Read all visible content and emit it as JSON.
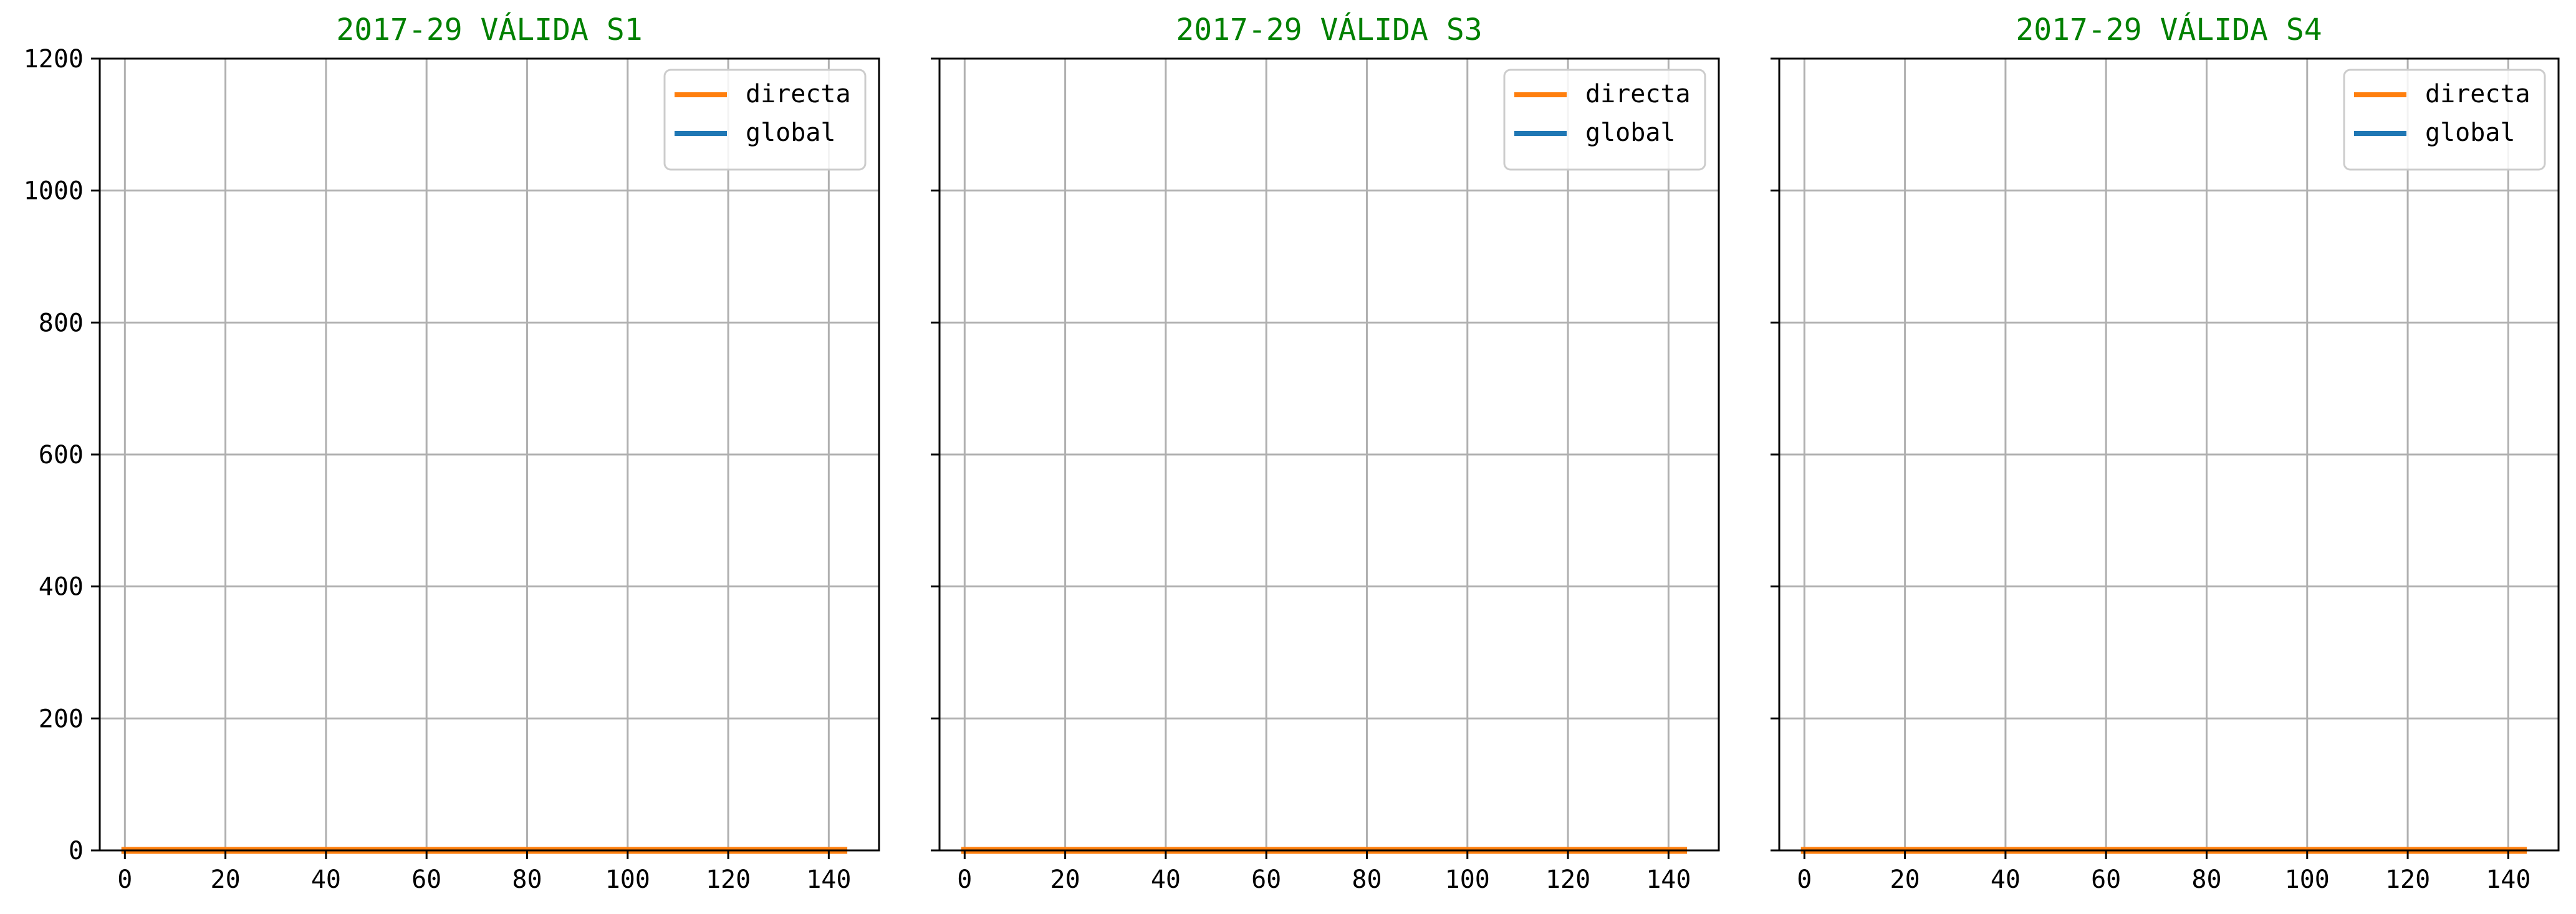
{
  "figure": {
    "title_color": "#008000",
    "grid_color": "#b0b0b0"
  },
  "chart_data": [
    {
      "type": "line",
      "title": "2017-29 VÁLIDA S1",
      "xlabel": "",
      "ylabel": "",
      "xlim": [
        -5,
        150
      ],
      "ylim": [
        0,
        1200
      ],
      "xticks": [
        0,
        20,
        40,
        60,
        80,
        100,
        120,
        140
      ],
      "yticks": [
        0,
        200,
        400,
        600,
        800,
        1000,
        1200
      ],
      "show_ytick_labels": true,
      "grid": true,
      "legend": "top-right",
      "x": [
        0,
        143
      ],
      "series": [
        {
          "name": "directa",
          "color": "#ff7f0e",
          "values": [
            0,
            0
          ]
        },
        {
          "name": "global",
          "color": "#1f77b4",
          "values": [
            0,
            0
          ]
        }
      ]
    },
    {
      "type": "line",
      "title": "2017-29 VÁLIDA S3",
      "xlabel": "",
      "ylabel": "",
      "xlim": [
        -5,
        150
      ],
      "ylim": [
        0,
        1200
      ],
      "xticks": [
        0,
        20,
        40,
        60,
        80,
        100,
        120,
        140
      ],
      "yticks": [
        0,
        200,
        400,
        600,
        800,
        1000,
        1200
      ],
      "show_ytick_labels": false,
      "grid": true,
      "legend": "top-right",
      "x": [
        0,
        143
      ],
      "series": [
        {
          "name": "directa",
          "color": "#ff7f0e",
          "values": [
            0,
            0
          ]
        },
        {
          "name": "global",
          "color": "#1f77b4",
          "values": [
            0,
            0
          ]
        }
      ]
    },
    {
      "type": "line",
      "title": "2017-29 VÁLIDA S4",
      "xlabel": "",
      "ylabel": "",
      "xlim": [
        -5,
        150
      ],
      "ylim": [
        0,
        1200
      ],
      "xticks": [
        0,
        20,
        40,
        60,
        80,
        100,
        120,
        140
      ],
      "yticks": [
        0,
        200,
        400,
        600,
        800,
        1000,
        1200
      ],
      "show_ytick_labels": false,
      "grid": true,
      "legend": "top-right",
      "x": [
        0,
        143
      ],
      "series": [
        {
          "name": "directa",
          "color": "#ff7f0e",
          "values": [
            0,
            0
          ]
        },
        {
          "name": "global",
          "color": "#1f77b4",
          "values": [
            0,
            0
          ]
        }
      ]
    }
  ]
}
